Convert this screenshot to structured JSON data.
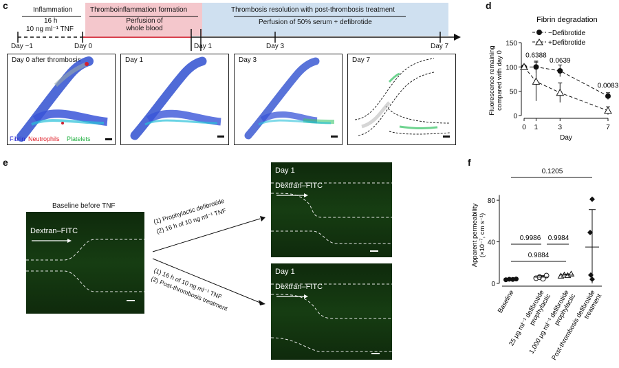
{
  "panel_c": {
    "label": "c",
    "timeline": {
      "inflammation": "Inflammation",
      "inflam_detail_1": "16 h",
      "inflam_detail_2": "10 ng ml⁻¹ TNF",
      "thrombo_title": "Thromboinflammation formation",
      "thrombo_detail": "Perfusion of whole blood",
      "resolution_title": "Thrombosis resolution with post-thrombosis treatment",
      "resolution_detail": "Perfusion of 50% serum + defibrotide",
      "days": [
        "Day −1",
        "Day 0",
        "Day 1",
        "Day 3",
        "Day 7"
      ]
    },
    "images": [
      "Day 0 after thrombosis",
      "Day 1",
      "Day 3",
      "Day 7"
    ],
    "legend": {
      "fibrin": "Fibrin",
      "neutrophils": "Neutrophils",
      "platelets": "Platelets"
    },
    "colors": {
      "fibrin": "#2a2ad0",
      "neutrophils": "#e0202a",
      "platelets": "#20b040",
      "red_band": "#f4c7cc",
      "blue_band": "#cfe0f0"
    }
  },
  "chart_data": [
    {
      "panel": "d",
      "type": "line",
      "title": "Fibrin degradation",
      "xlabel": "Day",
      "ylabel": "Fluorescence remaining compared with day 0",
      "x": [
        0,
        1,
        3,
        7
      ],
      "xticks": [
        0,
        1,
        3,
        7
      ],
      "yticks": [
        0,
        50,
        100,
        150
      ],
      "ylim": [
        0,
        150
      ],
      "series": [
        {
          "name": "−Defibrotide",
          "marker": "filled-circle",
          "values": [
            100,
            100,
            92,
            40
          ],
          "err": [
            3,
            12,
            12,
            7
          ]
        },
        {
          "name": "+Defibrotide",
          "marker": "open-triangle",
          "values": [
            100,
            70,
            47,
            10
          ],
          "err": [
            3,
            40,
            20,
            8
          ]
        }
      ],
      "annotations": [
        "0.6388",
        "0.0639",
        "0.0083"
      ]
    },
    {
      "panel": "f",
      "type": "scatter",
      "ylabel": "Apparent permeability (×10⁻⁷, cm s⁻¹)",
      "categories": [
        "Baseline",
        "25 μg ml⁻¹ defibrotide prophylactic",
        "1,000 μg ml⁻¹ defibrotide prophylactic",
        "Post-thrombosis defibrotide treatment"
      ],
      "yticks": [
        0,
        40,
        80
      ],
      "ylim": [
        0,
        90
      ],
      "points": [
        [
          3.5,
          4,
          3.8,
          4.2
        ],
        [
          5,
          6,
          4.5,
          7.5
        ],
        [
          7,
          8,
          7.5,
          9
        ],
        [
          81,
          49,
          8,
          4
        ]
      ],
      "means": [
        4,
        6,
        8,
        35
      ],
      "sd": [
        0.5,
        1.5,
        1,
        36
      ],
      "annotations": [
        "0.1205",
        "0.9986",
        "0.9984",
        "0.9884"
      ]
    }
  ],
  "panel_e": {
    "label": "e",
    "baseline_title": "Baseline before TNF",
    "dextran": "Dextran–FITC",
    "day1": "Day 1",
    "top_arrow_1": "(1) Prophylactic defibrotide",
    "top_arrow_2": "(2) 16 h of 10 ng ml⁻¹ TNF",
    "bottom_arrow_1": "(1) 16 h of 10 ng ml⁻¹ TNF",
    "bottom_arrow_2": "(2) Post-thrombosis treatment"
  },
  "panel_d_label": "d",
  "panel_f_label": "f"
}
